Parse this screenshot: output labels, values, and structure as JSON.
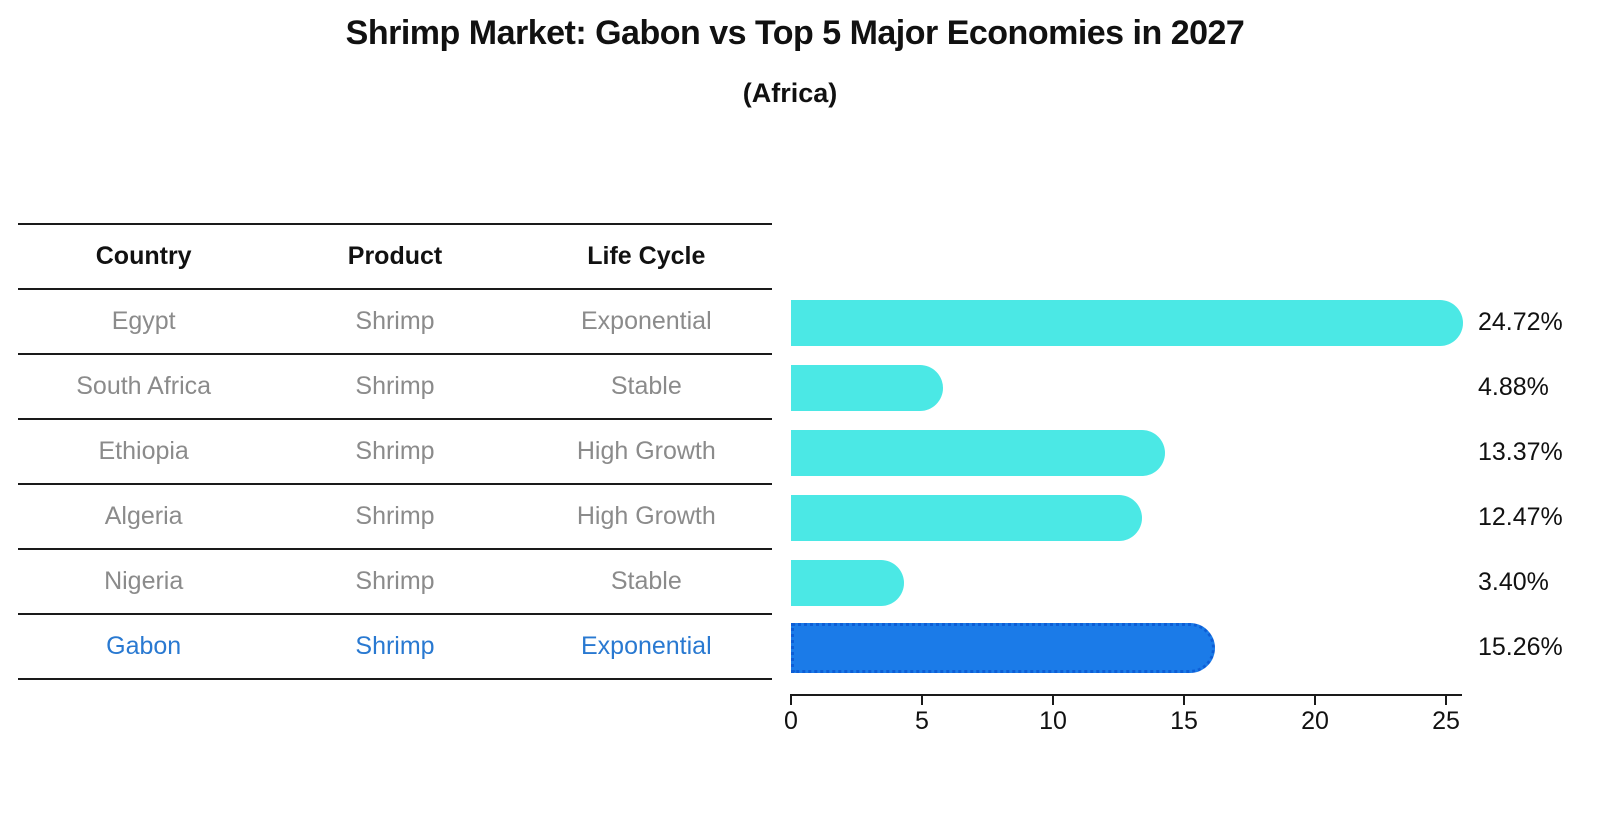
{
  "title": "Shrimp Market: Gabon vs Top 5 Major Economies in 2027",
  "subtitle": "(Africa)",
  "table": {
    "headers": [
      "Country",
      "Product",
      "Life Cycle"
    ],
    "rows": [
      {
        "country": "Egypt",
        "product": "Shrimp",
        "life_cycle": "Exponential",
        "highlight": false
      },
      {
        "country": "South Africa",
        "product": "Shrimp",
        "life_cycle": "Stable",
        "highlight": false
      },
      {
        "country": "Ethiopia",
        "product": "Shrimp",
        "life_cycle": "High Growth",
        "highlight": false
      },
      {
        "country": "Algeria",
        "product": "Shrimp",
        "life_cycle": "High Growth",
        "highlight": false
      },
      {
        "country": "Nigeria",
        "product": "Shrimp",
        "life_cycle": "Stable",
        "highlight": false
      },
      {
        "country": "Gabon",
        "product": "Shrimp",
        "life_cycle": "Exponential",
        "highlight": true
      }
    ]
  },
  "chart_data": {
    "type": "bar",
    "orientation": "horizontal",
    "title": "Shrimp Market: Gabon vs Top 5 Major Economies in 2027",
    "subtitle": "(Africa)",
    "categories": [
      "Egypt",
      "South Africa",
      "Ethiopia",
      "Algeria",
      "Nigeria",
      "Gabon"
    ],
    "values": [
      24.72,
      4.88,
      13.37,
      12.47,
      3.4,
      15.26
    ],
    "value_labels": [
      "24.72%",
      "4.88%",
      "13.37%",
      "12.47%",
      "3.40%",
      "15.26%"
    ],
    "xlabel": "",
    "ylabel": "",
    "xlim": [
      0,
      25.6
    ],
    "x_ticks": [
      "0",
      "5",
      "10",
      "15",
      "20",
      "25"
    ],
    "grid": false,
    "legend": false,
    "bar_color": "#4BE8E5",
    "highlight_index": 5,
    "highlight_bar_color": "#1B7BE8",
    "highlight_border_color": "#0D5ED6"
  },
  "colors": {
    "row_text": "#8B8B8B",
    "highlight_text": "#2979D1",
    "line_color": "#1A1A1A"
  }
}
